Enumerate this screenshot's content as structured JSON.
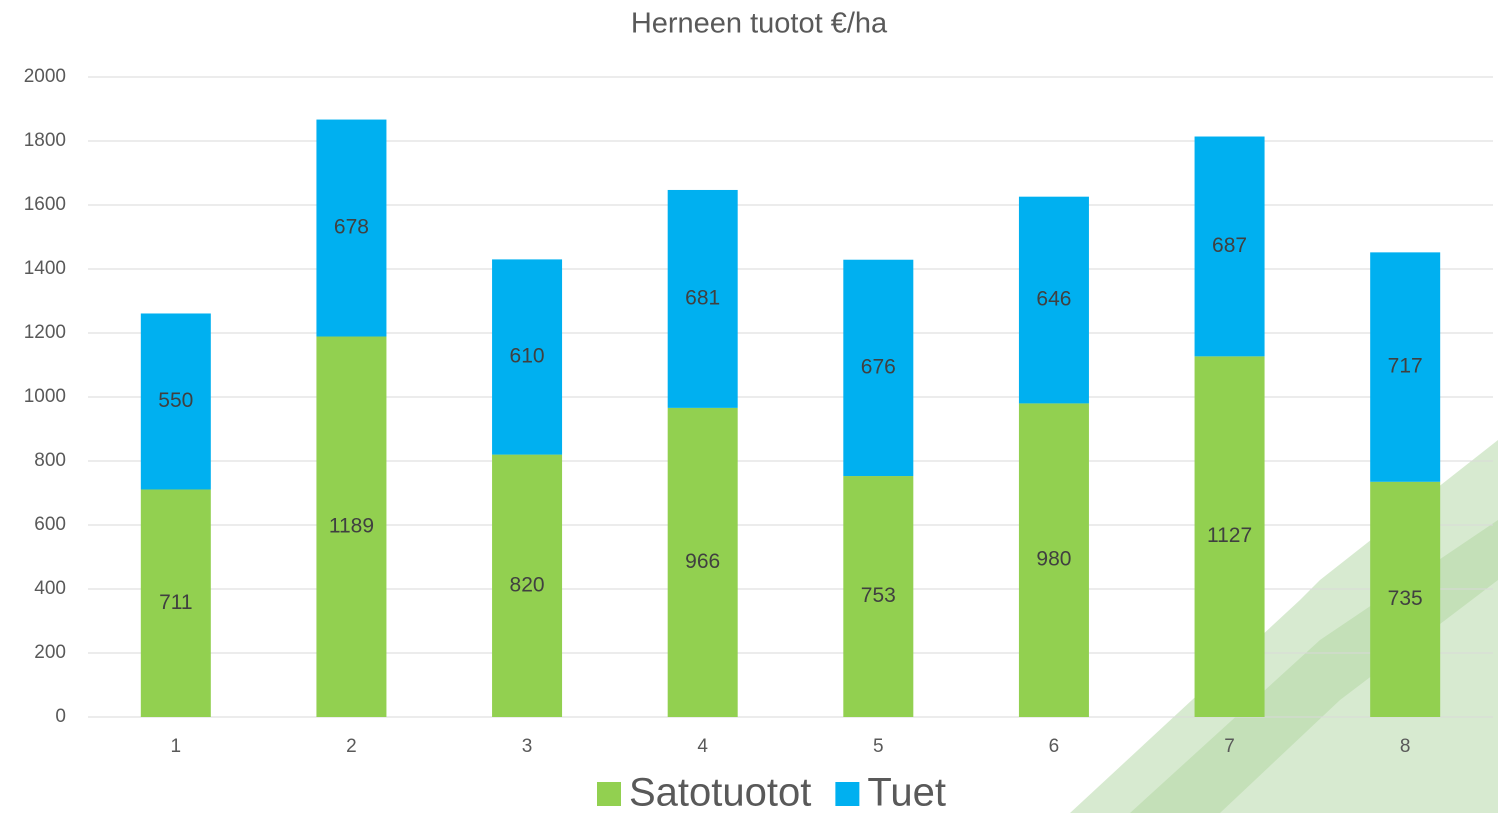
{
  "chart_data": {
    "type": "stacked_bar",
    "title": "Herneen tuotot €/ha",
    "categories": [
      "1",
      "2",
      "3",
      "4",
      "5",
      "6",
      "7",
      "8"
    ],
    "series": [
      {
        "name": "Satotuotot",
        "color": "#92d050",
        "values": [
          711,
          1189,
          820,
          966,
          753,
          980,
          1127,
          735
        ]
      },
      {
        "name": "Tuet",
        "color": "#00b0f0",
        "values": [
          550,
          678,
          610,
          681,
          676,
          646,
          687,
          717
        ]
      }
    ],
    "ylim": [
      0,
      2000
    ],
    "yticks": [
      0,
      200,
      400,
      600,
      800,
      1000,
      1200,
      1400,
      1600,
      1800,
      2000
    ],
    "grid": true,
    "legend": "bottom"
  }
}
